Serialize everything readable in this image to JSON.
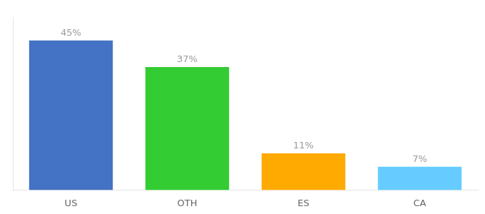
{
  "chart_data": {
    "type": "bar",
    "categories": [
      "US",
      "OTH",
      "ES",
      "CA"
    ],
    "values": [
      45,
      37,
      11,
      7
    ],
    "value_labels": [
      "45%",
      "37%",
      "11%",
      "7%"
    ],
    "colors": [
      "#4472c4",
      "#33cc33",
      "#ffaa00",
      "#66ccff"
    ],
    "ylim": [
      0,
      52
    ],
    "grid": false,
    "data_labels": true,
    "tick_labels": "x"
  }
}
